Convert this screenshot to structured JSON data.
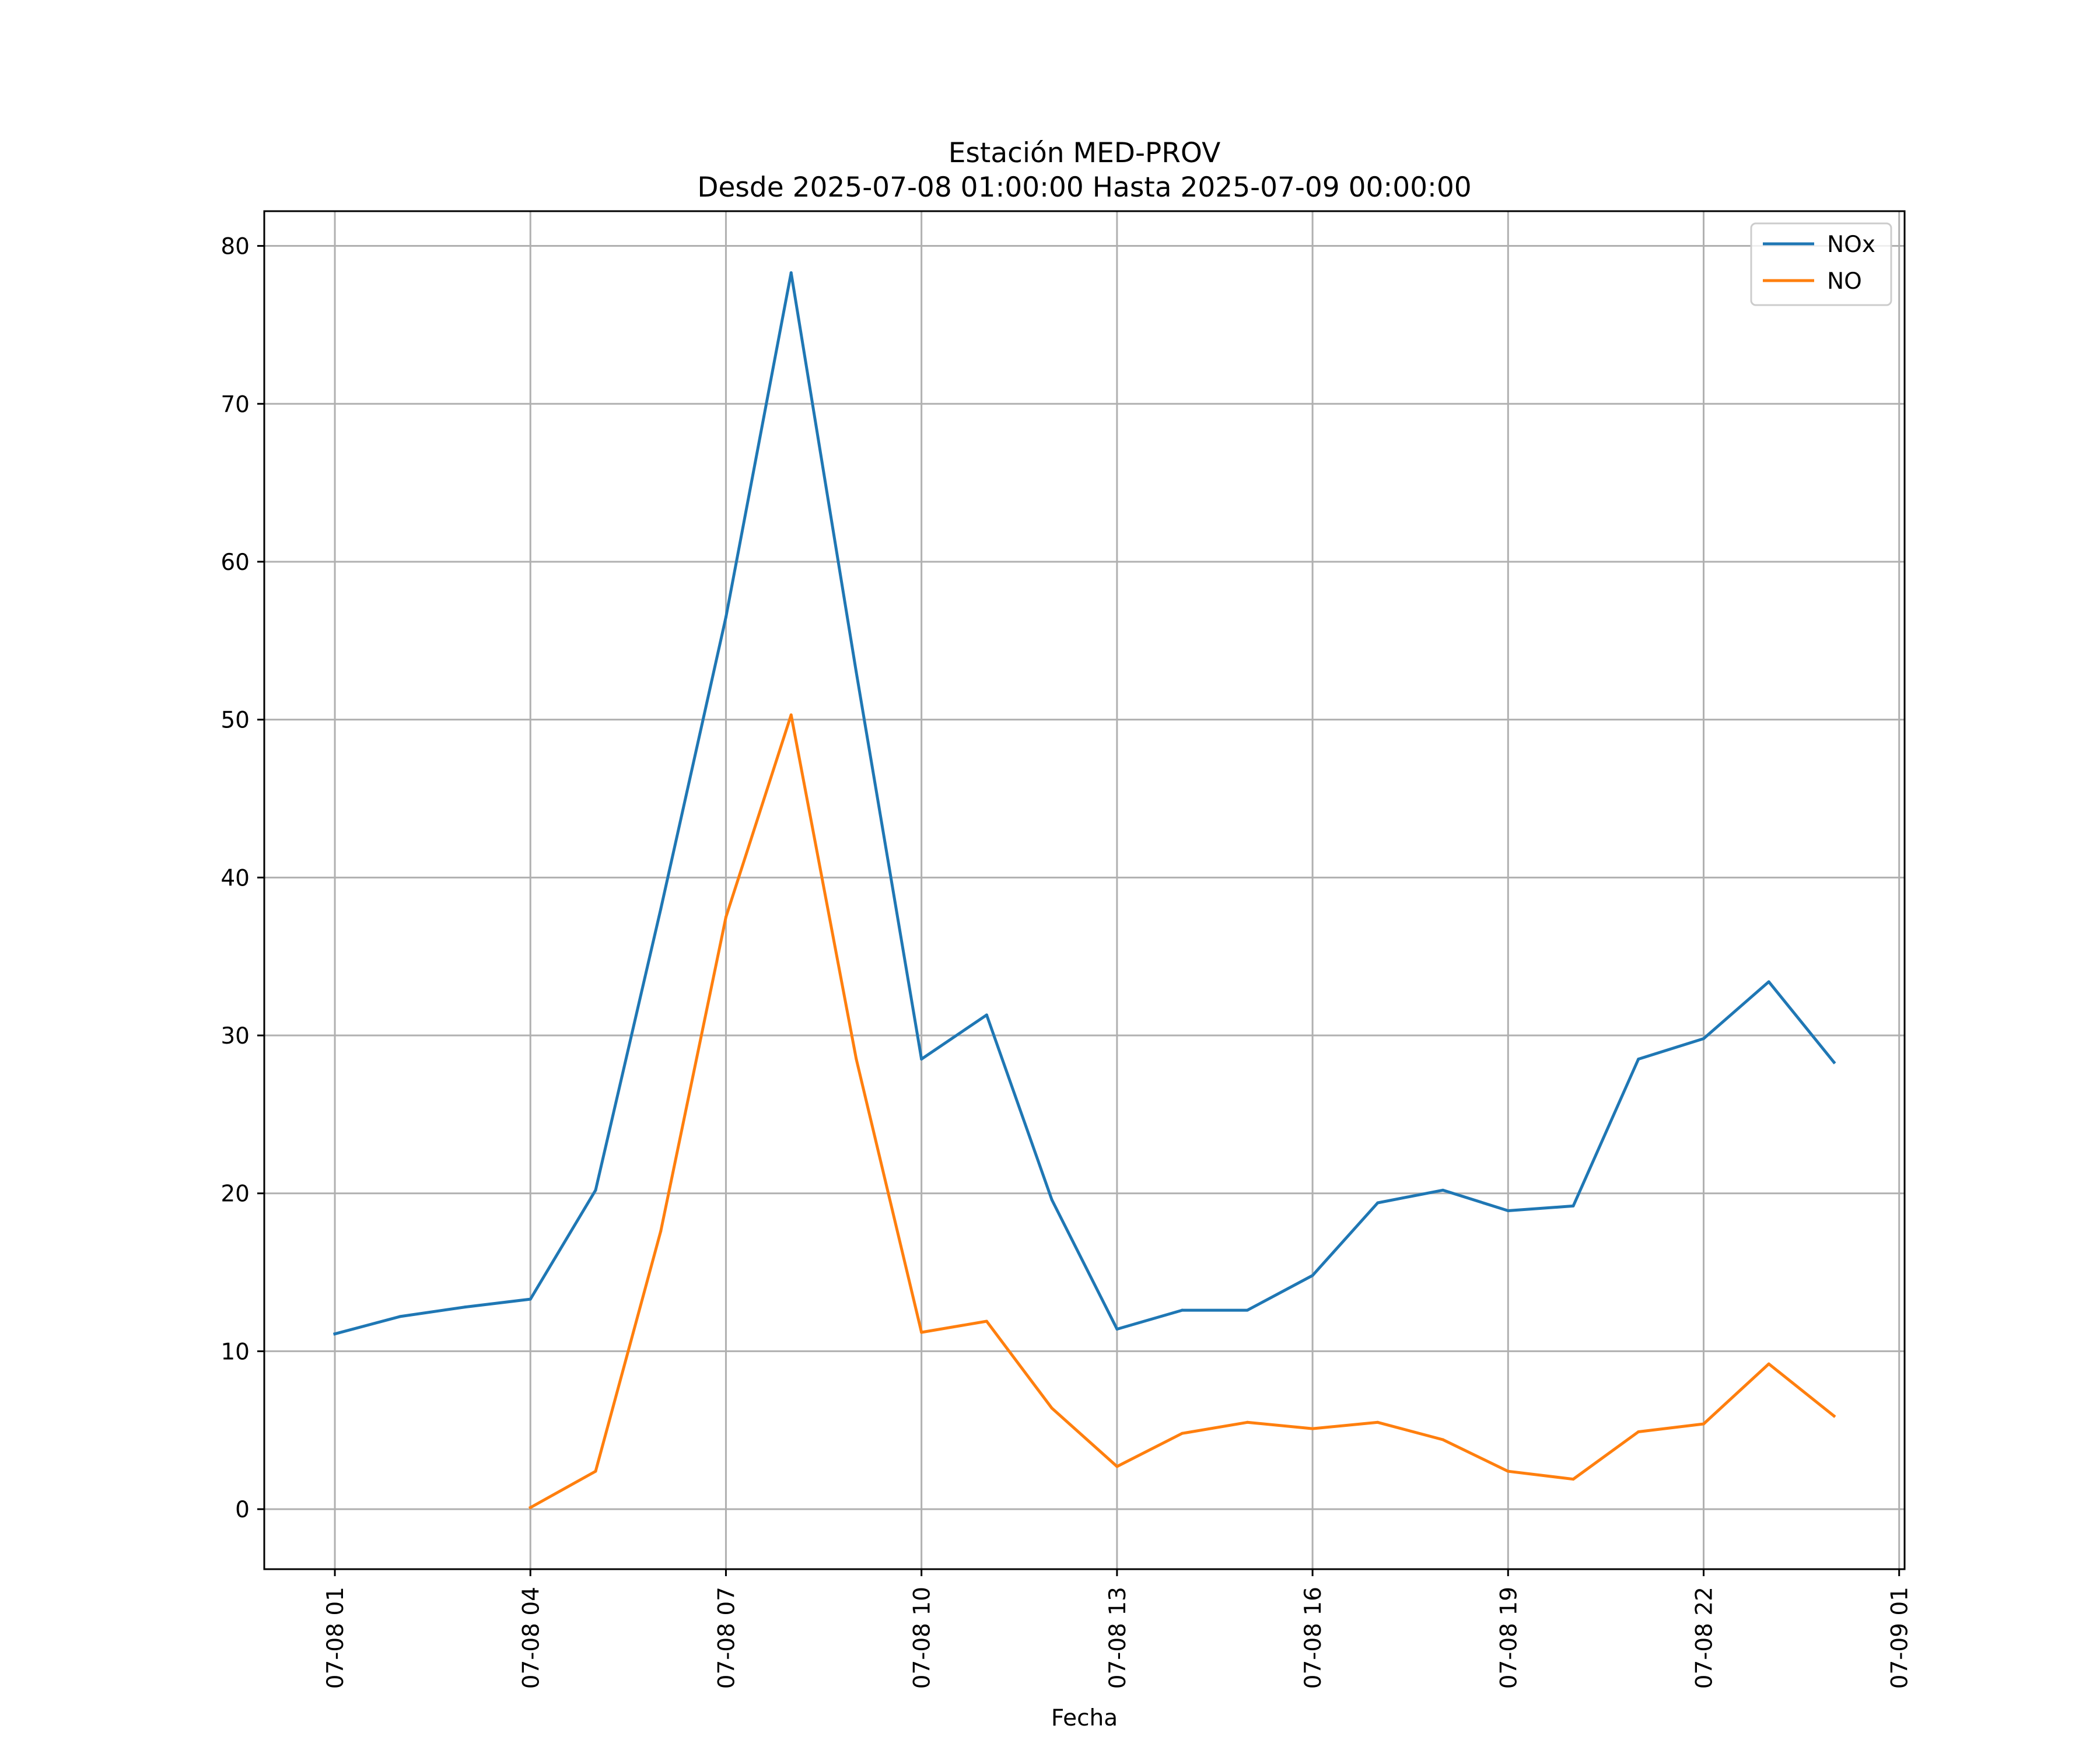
{
  "chart_data": {
    "type": "line",
    "title": "Estación MED-PROV",
    "subtitle": "Desde 2025-07-08 01:00:00 Hasta 2025-07-09 00:00:00",
    "xlabel": "Fecha",
    "ylabel": "",
    "x": [
      "2025-07-08 01:00",
      "2025-07-08 02:00",
      "2025-07-08 03:00",
      "2025-07-08 04:00",
      "2025-07-08 05:00",
      "2025-07-08 06:00",
      "2025-07-08 07:00",
      "2025-07-08 08:00",
      "2025-07-08 09:00",
      "2025-07-08 10:00",
      "2025-07-08 11:00",
      "2025-07-08 12:00",
      "2025-07-08 13:00",
      "2025-07-08 14:00",
      "2025-07-08 15:00",
      "2025-07-08 16:00",
      "2025-07-08 17:00",
      "2025-07-08 18:00",
      "2025-07-08 19:00",
      "2025-07-08 20:00",
      "2025-07-08 21:00",
      "2025-07-08 22:00",
      "2025-07-08 23:00",
      "2025-07-09 00:00"
    ],
    "series": [
      {
        "name": "NOx",
        "color": "#1f77b4",
        "values": [
          11.1,
          12.2,
          12.8,
          13.3,
          20.2,
          38.0,
          56.5,
          78.3,
          53.0,
          28.5,
          31.3,
          19.6,
          11.4,
          12.6,
          12.6,
          14.8,
          19.4,
          20.2,
          18.9,
          19.2,
          28.5,
          29.8,
          33.4,
          28.3
        ]
      },
      {
        "name": "NO",
        "color": "#ff7f0e",
        "values": [
          null,
          null,
          null,
          0.1,
          2.4,
          17.6,
          37.5,
          50.3,
          28.5,
          11.2,
          11.9,
          6.4,
          2.7,
          4.8,
          5.5,
          5.1,
          5.5,
          4.4,
          2.4,
          1.9,
          4.9,
          5.4,
          9.2,
          5.9
        ]
      }
    ],
    "ylim": [
      -3.8,
      82.2
    ],
    "xlim": [
      "2025-07-07 23:55",
      "2025-07-09 01:05"
    ],
    "yticks": [
      0,
      10,
      20,
      30,
      40,
      50,
      60,
      70,
      80
    ],
    "xticks": [
      "2025-07-08 01:00",
      "2025-07-08 04:00",
      "2025-07-08 07:00",
      "2025-07-08 10:00",
      "2025-07-08 13:00",
      "2025-07-08 16:00",
      "2025-07-08 19:00",
      "2025-07-08 22:00",
      "2025-07-09 01:00"
    ],
    "xtick_labels": [
      "07-08 01",
      "07-08 04",
      "07-08 07",
      "07-08 10",
      "07-08 13",
      "07-08 16",
      "07-08 19",
      "07-08 22",
      "07-09 01"
    ],
    "grid": true,
    "legend_position": "top-right"
  }
}
